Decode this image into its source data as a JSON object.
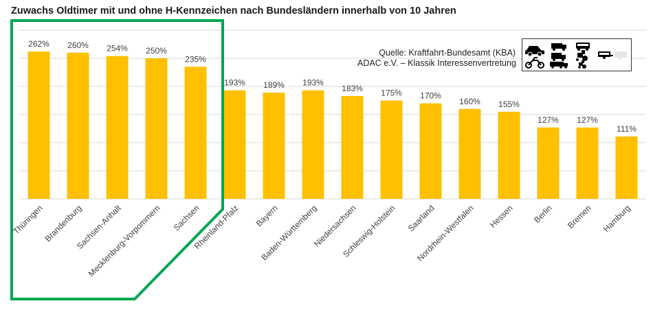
{
  "chart_data": {
    "type": "bar",
    "title": "Zuwachs Oldtimer mit und ohne H-Kennzeichen nach Bundesländern innerhalb von 10 Jahren",
    "categories": [
      "Thüringen",
      "Brandenburg",
      "Sachsen-Anhalt",
      "Mecklenburg-Vorpommern",
      "Sachsen",
      "Rheinland-Pfalz",
      "Bayern",
      "Baden-Württemberg",
      "Niedersachsen",
      "Schleswig-Holstein",
      "Saarland",
      "Nordrhein-Westfalen",
      "Hessen",
      "Berlin",
      "Bremen",
      "Hamburg"
    ],
    "values": [
      262,
      260,
      254,
      250,
      235,
      193,
      189,
      193,
      183,
      175,
      170,
      160,
      155,
      127,
      127,
      111
    ],
    "value_labels": [
      "262%",
      "260%",
      "254%",
      "250%",
      "235%",
      "193%",
      "189%",
      "193%",
      "183%",
      "175%",
      "170%",
      "160%",
      "155%",
      "127%",
      "127%",
      "111%"
    ],
    "unit": "%",
    "ylim": [
      0,
      300
    ],
    "grid": true,
    "xlabel": "",
    "ylabel": "",
    "bar_color": "#FFC000",
    "highlight": {
      "categories": [
        "Thüringen",
        "Brandenburg",
        "Sachsen-Anhalt",
        "Mecklenburg-Vorpommern",
        "Sachsen"
      ],
      "color": "#00A651"
    }
  },
  "source": {
    "line1": "Quelle: Kraftfahrt-Bundesamt (KBA)",
    "line2": "ADAC e.V. – Klassik Interessenvertretung"
  },
  "vehicle_icons": [
    "car-icon",
    "truck-icon",
    "bus-icon",
    "motorcycle-icon",
    "tractor-icon",
    "trailer-icon",
    "caravan-icon"
  ],
  "colors": {
    "grid": "#D9D9D9",
    "text": "#404040"
  }
}
